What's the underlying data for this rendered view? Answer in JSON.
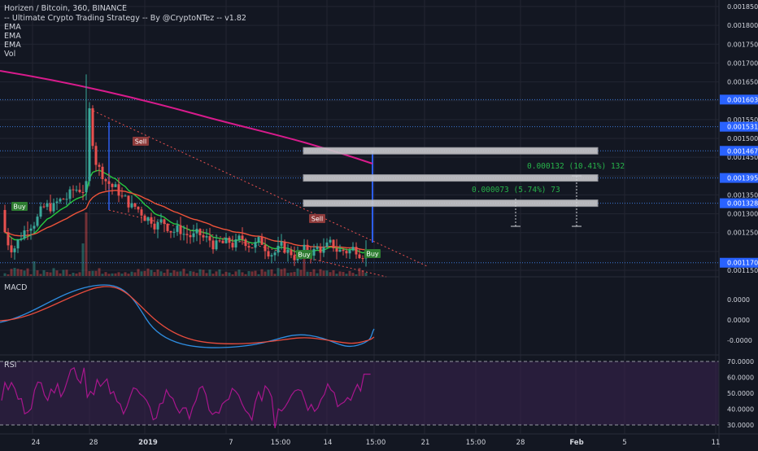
{
  "header": {
    "title": "Horizen / Bitcoin, 360, BINANCE",
    "strategy": "-- Ultimate Crypto Trading Strategy -- By @CryptoNTez -- v1.82",
    "indicators": [
      "EMA",
      "EMA",
      "EMA",
      "Vol"
    ]
  },
  "colors": {
    "background": "#131722",
    "grid": "#232632",
    "text": "#d1d4dc",
    "candle_up": "#3aa89a",
    "candle_down": "#e8504f",
    "ema_fast": "#27c93f",
    "ema_mid": "#ef5339",
    "ema_slow": "#d81b8c",
    "blue_line": "#2c5ef0",
    "macd": "#2e8de0",
    "signal": "#e84c3d",
    "rsi": "#a8168d",
    "rsi_band": "#3b2350",
    "level": "#3c78d8",
    "measure_text": "#27b34a",
    "buy": "#2e7d32",
    "sell": "#8d3a3a"
  },
  "price_axis": {
    "ticks": [
      "0.001850",
      "0.001800",
      "0.001750",
      "0.001700",
      "0.001650",
      "0.001550",
      "0.001500",
      "0.001450",
      "0.001350",
      "0.001300",
      "0.001250",
      "0.001150"
    ],
    "level_labels": [
      "0.001603",
      "0.001531",
      "0.001467",
      "0.001395",
      "0.001328",
      "0.001170"
    ]
  },
  "x_axis": {
    "labels": [
      "24",
      "28",
      "2019",
      "7",
      "15:00",
      "14",
      "15:00",
      "21",
      "15:00",
      "28",
      "Feb",
      "5",
      "11"
    ]
  },
  "macd_panel": {
    "label": "MACD",
    "ticks": [
      "0.0000",
      "0.0000",
      "-0.0000"
    ]
  },
  "rsi_panel": {
    "label": "RSI",
    "ticks": [
      "70.0000",
      "60.0000",
      "50.0000",
      "40.0000",
      "30.0000"
    ]
  },
  "signals": {
    "buy": "Buy",
    "sell": "Sell"
  },
  "annotations": {
    "measure_1": "0.000132 (10.41%) 132",
    "measure_2": "0.000073 (5.74%) 73"
  },
  "chart_data": {
    "type": "candlestick",
    "title": "Horizen / Bitcoin, 360, BINANCE",
    "interval": "360",
    "ylim": [
      0.00113,
      0.00187
    ],
    "levels": [
      0.001603,
      0.001531,
      0.001467,
      0.001395,
      0.001328,
      0.00117
    ],
    "trend_points": [
      [
        0.00118,
        0.00135
      ],
      [
        0.0013,
        0.0016
      ],
      [
        0.00132,
        0.00157
      ],
      [
        0.00137,
        0.00154
      ],
      [
        0.0014,
        0.00147
      ],
      [
        0.00132,
        0.0014
      ],
      [
        0.00129,
        0.00138
      ],
      [
        0.00126,
        0.00131
      ],
      [
        0.00123,
        0.00129
      ],
      [
        0.00121,
        0.00126
      ],
      [
        0.00123,
        0.00125
      ],
      [
        0.00121,
        0.00124
      ],
      [
        0.00119,
        0.00122
      ],
      [
        0.00121,
        0.00123
      ],
      [
        0.0012,
        0.001225
      ],
      [
        0.00122,
        0.001275
      ]
    ],
    "signals_list": [
      {
        "type": "Buy",
        "price": 0.00132
      },
      {
        "type": "Sell",
        "price": 0.00147
      },
      {
        "type": "Sell",
        "price": 0.00131
      },
      {
        "type": "Buy",
        "price": 0.001195
      },
      {
        "type": "Buy",
        "price": 0.001195
      }
    ],
    "macd_ticks": [
      "0.0000",
      "0.0000",
      "-0.0000"
    ],
    "rsi_ticks": [
      70,
      60,
      50,
      40,
      30
    ],
    "rsi_bands": [
      70,
      30
    ]
  }
}
